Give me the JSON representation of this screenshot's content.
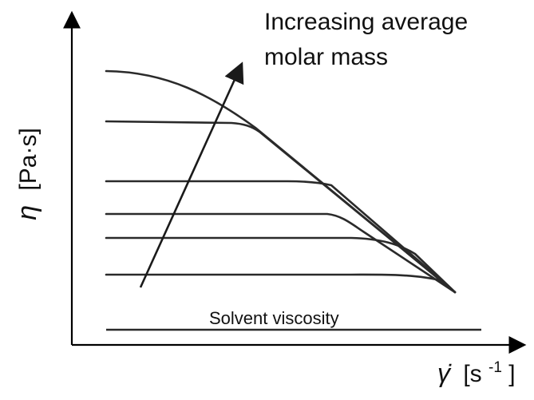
{
  "annotation": {
    "line1": "Increasing average",
    "line2": "molar mass"
  },
  "y_axis": {
    "symbol": "η",
    "unit": "[Pa·s]"
  },
  "x_axis": {
    "symbol": "γ̇",
    "unit_open": "[s",
    "unit_exp": "-1",
    "unit_close": "]"
  },
  "solvent_label": "Solvent viscosity",
  "colors": {
    "line": "#2a2a2a",
    "axis": "#000000"
  }
}
